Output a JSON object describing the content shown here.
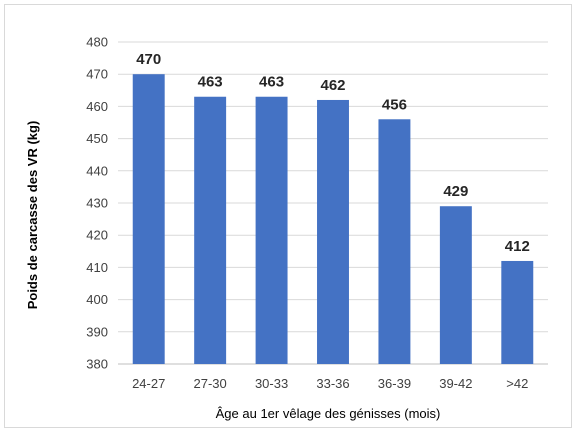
{
  "chart_data": {
    "type": "bar",
    "categories": [
      "24-27",
      "27-30",
      "30-33",
      "33-36",
      "36-39",
      "39-42",
      ">42"
    ],
    "values": [
      470,
      463,
      463,
      462,
      456,
      429,
      412
    ],
    "data_labels": [
      "470",
      "463",
      "463",
      "462",
      "456",
      "429",
      "412"
    ],
    "xlabel": "Âge au 1er vêlage des génisses (mois)",
    "ylabel": "Poids de carcasse des VR (kg)",
    "ylim": [
      380,
      480
    ],
    "yticks": [
      380,
      390,
      400,
      410,
      420,
      430,
      440,
      450,
      460,
      470,
      480
    ],
    "bar_color": "#4472C4",
    "grid": true
  }
}
